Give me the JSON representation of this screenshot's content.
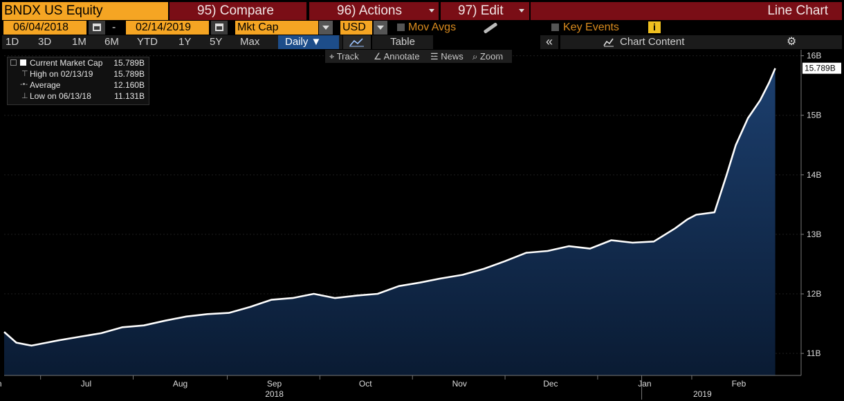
{
  "header": {
    "ticker": "BNDX US Equity",
    "compare": "95) Compare",
    "actions": "96) Actions",
    "edit": "97) Edit",
    "chart_type": "Line Chart"
  },
  "controls": {
    "start_date": "06/04/2018",
    "separator": "-",
    "end_date": "02/14/2019",
    "field": "Mkt Cap",
    "currency": "USD",
    "mov_avgs": "Mov Avgs",
    "key_events": "Key Events",
    "info": "i"
  },
  "ranges": {
    "items": [
      "1D",
      "3D",
      "1M",
      "6M",
      "YTD",
      "1Y",
      "5Y",
      "Max"
    ],
    "period": "Daily ▼",
    "table": "Table",
    "chart_content": "Chart Content"
  },
  "tools": {
    "track": "Track",
    "annotate": "Annotate",
    "news": "News",
    "zoom": "Zoom"
  },
  "legend": [
    {
      "label": "Current Market Cap",
      "value": "15.789B"
    },
    {
      "label": "High on 02/13/19",
      "value": "15.789B"
    },
    {
      "label": "Average",
      "value": "12.160B"
    },
    {
      "label": "Low on 06/13/18",
      "value": "11.131B"
    }
  ],
  "colors": {
    "line": "#ffffff",
    "fill_top": "#1c3f6e",
    "fill_bottom": "#0a1b33",
    "header_bg": "#7a0e16",
    "accent": "#f5a523"
  },
  "chart_data": {
    "type": "area",
    "title": "",
    "xlabel": "",
    "ylabel": "",
    "ylim": [
      10.63,
      16.1
    ],
    "y_ticks": [
      11,
      12,
      13,
      14,
      15,
      16
    ],
    "y_tick_labels": [
      "11B",
      "12B",
      "13B",
      "14B",
      "15B",
      "16B"
    ],
    "x_range": [
      "2018-06-04",
      "2019-02-14"
    ],
    "x_ticks": [
      {
        "date": "2018-06-01",
        "label": "Jun"
      },
      {
        "date": "2018-07-01",
        "label": "Jul"
      },
      {
        "date": "2018-08-01",
        "label": "Aug"
      },
      {
        "date": "2018-09-01",
        "label": "Sep"
      },
      {
        "date": "2018-10-01",
        "label": "Oct"
      },
      {
        "date": "2018-11-01",
        "label": "Nov"
      },
      {
        "date": "2018-12-01",
        "label": "Dec"
      },
      {
        "date": "2019-01-01",
        "label": "Jan"
      },
      {
        "date": "2019-02-01",
        "label": "Feb"
      }
    ],
    "year_labels": [
      {
        "date": "2018-09-01",
        "label": "2018"
      },
      {
        "date": "2019-01-20",
        "label": "2019"
      }
    ],
    "last_value_label": "15.789B",
    "grid": true,
    "series": [
      {
        "name": "Current Market Cap",
        "x": [
          "2018-06-04",
          "2018-06-08",
          "2018-06-11",
          "2018-06-13",
          "2018-06-18",
          "2018-06-22",
          "2018-06-29",
          "2018-07-06",
          "2018-07-13",
          "2018-07-20",
          "2018-07-27",
          "2018-08-03",
          "2018-08-10",
          "2018-08-17",
          "2018-08-24",
          "2018-08-31",
          "2018-09-07",
          "2018-09-14",
          "2018-09-21",
          "2018-09-28",
          "2018-10-05",
          "2018-10-12",
          "2018-10-19",
          "2018-10-26",
          "2018-11-02",
          "2018-11-09",
          "2018-11-16",
          "2018-11-23",
          "2018-11-30",
          "2018-12-07",
          "2018-12-14",
          "2018-12-21",
          "2018-12-28",
          "2019-01-04",
          "2019-01-11",
          "2019-01-15",
          "2019-01-18",
          "2019-01-24",
          "2019-01-28",
          "2019-01-31",
          "2019-02-04",
          "2019-02-08",
          "2019-02-11",
          "2019-02-13"
        ],
        "values": [
          11.36,
          11.18,
          11.15,
          11.13,
          11.18,
          11.22,
          11.28,
          11.34,
          11.44,
          11.47,
          11.55,
          11.62,
          11.66,
          11.68,
          11.78,
          11.9,
          11.93,
          12.0,
          11.93,
          11.97,
          12.0,
          12.13,
          12.19,
          12.26,
          12.32,
          12.42,
          12.55,
          12.69,
          12.72,
          12.8,
          12.76,
          12.9,
          12.86,
          12.88,
          13.1,
          13.25,
          13.33,
          13.37,
          14.0,
          14.5,
          14.95,
          15.25,
          15.55,
          15.79
        ]
      }
    ]
  }
}
